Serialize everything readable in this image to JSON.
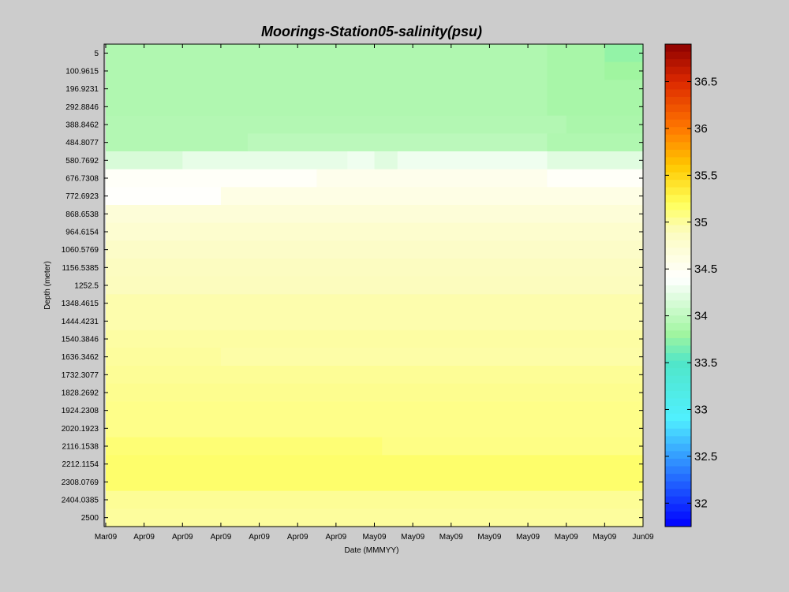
{
  "chart_data": {
    "type": "heatmap",
    "title": "Moorings-Station05-salinity(psu)",
    "xlabel": "Date (MMMYY)",
    "ylabel": "Depth (meter)",
    "x_tick_labels": [
      "Mar09",
      "Apr09",
      "Apr09",
      "Apr09",
      "Apr09",
      "Apr09",
      "Apr09",
      "May09",
      "May09",
      "May09",
      "May09",
      "May09",
      "May09",
      "May09",
      "Jun09"
    ],
    "y_tick_labels": [
      "5",
      "100.9615",
      "196.9231",
      "292.8846",
      "388.8462",
      "484.8077",
      "580.7692",
      "676.7308",
      "772.6923",
      "868.6538",
      "964.6154",
      "1060.5769",
      "1156.5385",
      "1252.5",
      "1348.4615",
      "1444.4231",
      "1540.3846",
      "1636.3462",
      "1732.3077",
      "1828.2692",
      "1924.2308",
      "2020.1923",
      "2116.1538",
      "2212.1154",
      "2308.0769",
      "2404.0385",
      "2500"
    ],
    "ylim": [
      2500,
      5
    ],
    "colorbar": {
      "range": [
        31.75,
        36.9
      ],
      "ticks": [
        "32",
        "32.5",
        "33",
        "33.5",
        "34",
        "34.5",
        "35",
        "35.5",
        "36",
        "36.5"
      ],
      "colormap": "jet-white-center"
    },
    "time_steps": 14,
    "depth_levels": 27,
    "rows": [
      {
        "depth": "5",
        "segments": [
          [
            0,
            11.5,
            33.9
          ],
          [
            11.5,
            13,
            33.85
          ],
          [
            13,
            14,
            33.75
          ]
        ]
      },
      {
        "depth": "100.9615",
        "segments": [
          [
            0,
            11.5,
            33.9
          ],
          [
            11.5,
            13,
            33.85
          ],
          [
            13,
            14,
            33.8
          ]
        ]
      },
      {
        "depth": "196.9231",
        "segments": [
          [
            0,
            11.5,
            33.9
          ],
          [
            11.5,
            14,
            33.85
          ]
        ]
      },
      {
        "depth": "292.8846",
        "segments": [
          [
            0,
            11.5,
            33.9
          ],
          [
            11.5,
            14,
            33.85
          ]
        ]
      },
      {
        "depth": "388.8462",
        "segments": [
          [
            0,
            12,
            33.92
          ],
          [
            12,
            14,
            33.87
          ]
        ]
      },
      {
        "depth": "484.8077",
        "segments": [
          [
            0,
            3.7,
            33.92
          ],
          [
            3.7,
            11.5,
            33.97
          ],
          [
            11.5,
            14,
            33.9
          ]
        ]
      },
      {
        "depth": "580.7692",
        "segments": [
          [
            0,
            2,
            34.15
          ],
          [
            2,
            6.3,
            34.25
          ],
          [
            6.3,
            7,
            34.3
          ],
          [
            7,
            7.6,
            34.2
          ],
          [
            7.6,
            11.5,
            34.3
          ],
          [
            11.5,
            14,
            34.2
          ]
        ]
      },
      {
        "depth": "676.7308",
        "segments": [
          [
            0,
            5.5,
            34.45
          ],
          [
            5.5,
            11.5,
            34.55
          ],
          [
            11.5,
            14,
            34.45
          ]
        ]
      },
      {
        "depth": "772.6923",
        "segments": [
          [
            0,
            3,
            34.42
          ],
          [
            3,
            14,
            34.6
          ]
        ]
      },
      {
        "depth": "868.6538",
        "segments": [
          [
            0,
            14,
            34.7
          ]
        ]
      },
      {
        "depth": "964.6154",
        "segments": [
          [
            0,
            2.2,
            34.75
          ],
          [
            2.2,
            14,
            34.78
          ]
        ]
      },
      {
        "depth": "1060.5769",
        "segments": [
          [
            0,
            14,
            34.82
          ]
        ]
      },
      {
        "depth": "1156.5385",
        "segments": [
          [
            0,
            14,
            34.88
          ]
        ]
      },
      {
        "depth": "1252.5",
        "segments": [
          [
            0,
            14,
            34.9
          ]
        ]
      },
      {
        "depth": "1348.4615",
        "segments": [
          [
            0,
            14,
            34.95
          ]
        ]
      },
      {
        "depth": "1444.4231",
        "segments": [
          [
            0,
            14,
            34.95
          ]
        ]
      },
      {
        "depth": "1540.3846",
        "segments": [
          [
            0,
            14,
            34.98
          ]
        ]
      },
      {
        "depth": "1636.3462",
        "segments": [
          [
            0,
            3,
            35.0
          ],
          [
            3,
            14,
            34.97
          ]
        ]
      },
      {
        "depth": "1732.3077",
        "segments": [
          [
            0,
            14,
            35.02
          ]
        ]
      },
      {
        "depth": "1828.2692",
        "segments": [
          [
            0,
            14,
            35.04
          ]
        ]
      },
      {
        "depth": "1924.2308",
        "segments": [
          [
            0,
            14,
            35.06
          ]
        ]
      },
      {
        "depth": "2020.1923",
        "segments": [
          [
            0,
            14,
            35.06
          ]
        ]
      },
      {
        "depth": "2116.1538",
        "segments": [
          [
            0,
            7.2,
            35.12
          ],
          [
            7.2,
            14,
            35.07
          ]
        ]
      },
      {
        "depth": "2212.1154",
        "segments": [
          [
            0,
            14,
            35.15
          ]
        ]
      },
      {
        "depth": "2308.0769",
        "segments": [
          [
            0,
            14,
            35.15
          ]
        ]
      },
      {
        "depth": "2404.0385",
        "segments": [
          [
            0,
            14,
            35.02
          ]
        ]
      },
      {
        "depth": "2500",
        "segments": [
          [
            0,
            14,
            35.0
          ]
        ]
      }
    ]
  }
}
